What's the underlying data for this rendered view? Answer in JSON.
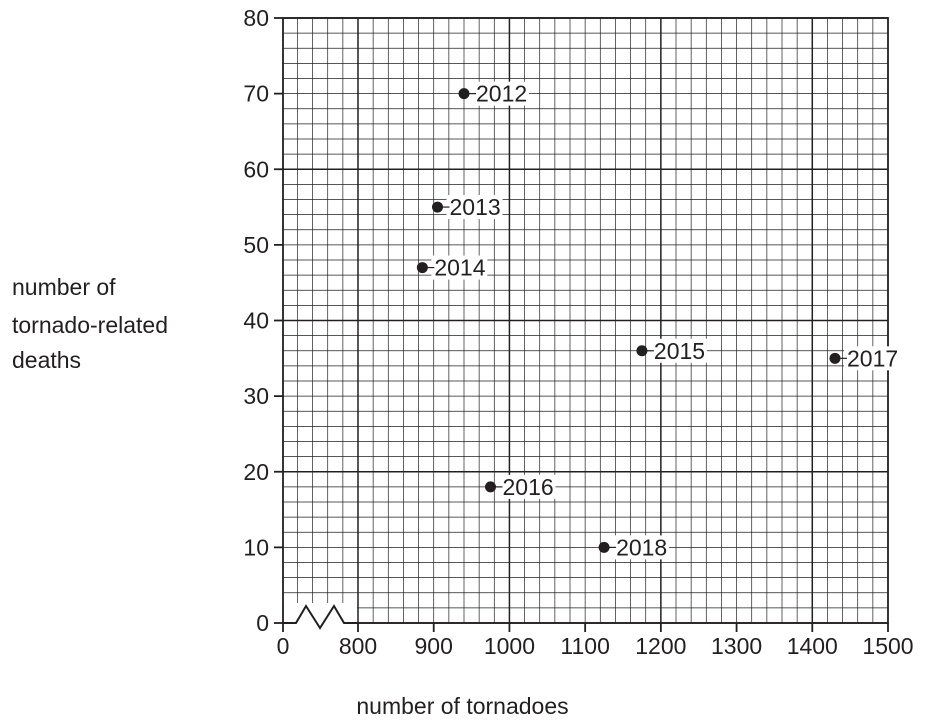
{
  "chart_data": {
    "type": "scatter",
    "xlabel": "number of tornadoes",
    "ylabel": [
      "number of",
      "tornado-related",
      "deaths"
    ],
    "x_axis": {
      "broken": true,
      "break_start": 0,
      "continuous_from": 800,
      "xlim_continuous": [
        800,
        1500
      ],
      "tick_labels": [
        "0",
        "800",
        "900",
        "1000",
        "1100",
        "1200",
        "1300",
        "1400",
        "1500"
      ]
    },
    "y_axis": {
      "ylim": [
        0,
        80
      ],
      "tick_labels": [
        "0",
        "10",
        "20",
        "30",
        "40",
        "50",
        "60",
        "70",
        "80"
      ]
    },
    "grid": true,
    "points": [
      {
        "label": "2012",
        "x": 940,
        "y": 70
      },
      {
        "label": "2013",
        "x": 905,
        "y": 55
      },
      {
        "label": "2014",
        "x": 885,
        "y": 47
      },
      {
        "label": "2015",
        "x": 1175,
        "y": 36
      },
      {
        "label": "2016",
        "x": 975,
        "y": 18
      },
      {
        "label": "2017",
        "x": 1430,
        "y": 35
      },
      {
        "label": "2018",
        "x": 1125,
        "y": 10
      }
    ]
  }
}
